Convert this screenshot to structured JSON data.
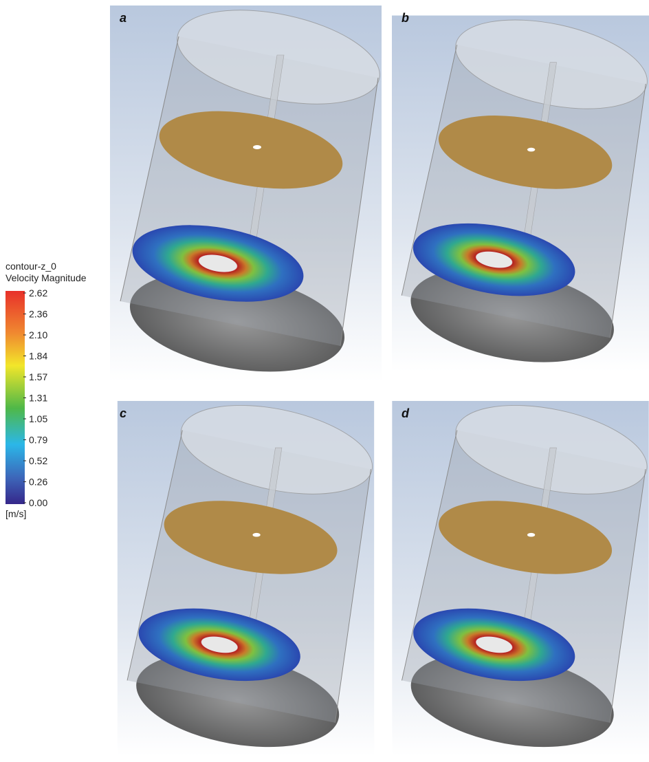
{
  "legend": {
    "title": "contour-z_0",
    "subtitle": "Velocity Magnitude",
    "ticks": [
      "2.62",
      "2.36",
      "2.10",
      "1.84",
      "1.57",
      "1.31",
      "1.05",
      "0.79",
      "0.52",
      "0.26",
      "0.00"
    ],
    "unit": "[m/s]"
  },
  "panels": [
    {
      "label": "a"
    },
    {
      "label": "b"
    },
    {
      "label": "c"
    },
    {
      "label": "d"
    }
  ]
}
